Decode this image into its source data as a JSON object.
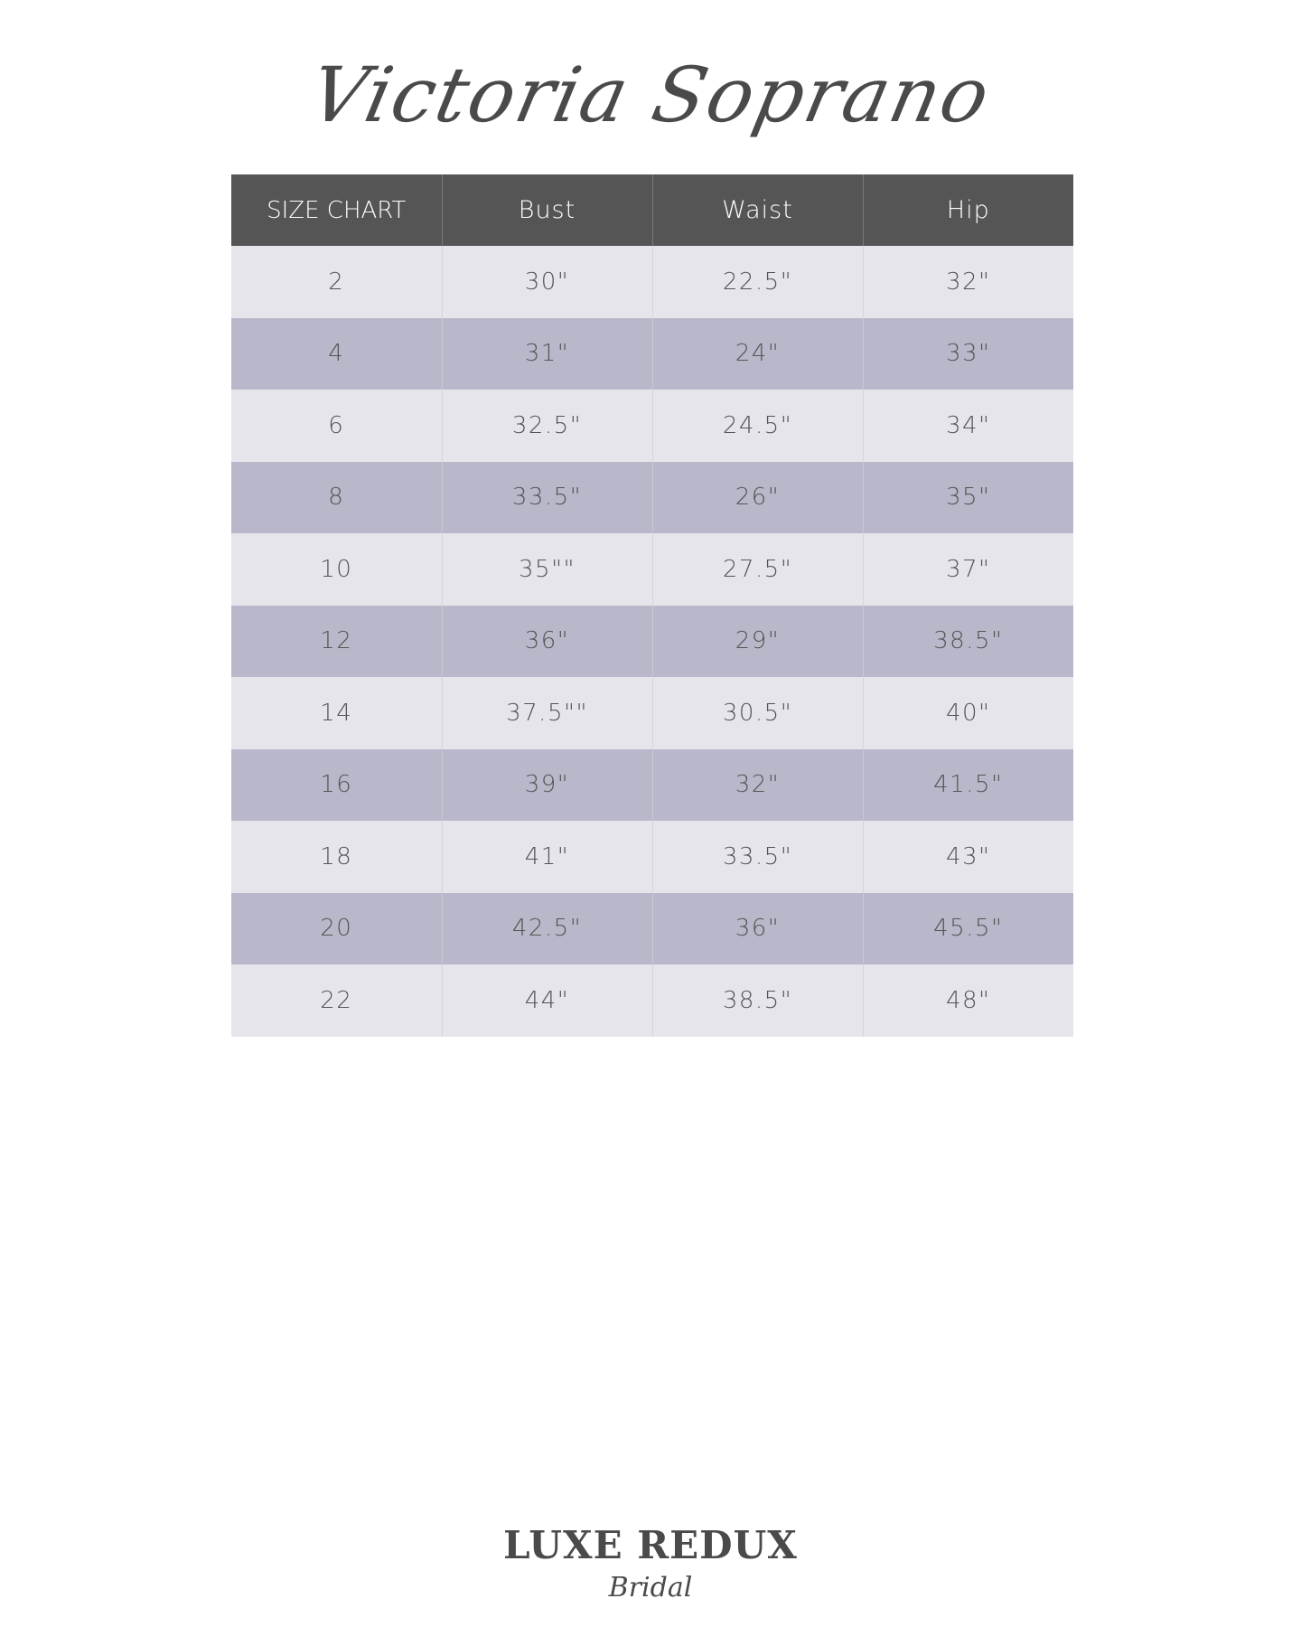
{
  "title": "Victoria Soprano",
  "table": {
    "headers": [
      "SIZE CHART",
      "Bust",
      "Waist",
      "Hip"
    ],
    "rows": [
      [
        "2",
        "30\"",
        "22.5\"",
        "32\""
      ],
      [
        "4",
        "31\"",
        "24\"",
        "33\""
      ],
      [
        "6",
        "32.5\"",
        "24.5\"",
        "34\""
      ],
      [
        "8",
        "33.5\"",
        "26\"",
        "35\""
      ],
      [
        "10",
        "35\"\"",
        "27.5\"",
        "37\""
      ],
      [
        "12",
        "36\"",
        "29\"",
        "38.5\""
      ],
      [
        "14",
        "37.5\"\"",
        "30.5\"",
        "40\""
      ],
      [
        "16",
        "39\"",
        "32\"",
        "41.5\""
      ],
      [
        "18",
        "41\"",
        "33.5\"",
        "43\""
      ],
      [
        "20",
        "42.5\"",
        "36\"",
        "45.5\""
      ],
      [
        "22",
        "44\"",
        "38.5\"",
        "48\""
      ]
    ]
  },
  "logo": {
    "main": "LUXE REDUX",
    "sub": "Bridal"
  },
  "colors": {
    "header": "#555555",
    "row_light": "#e6e5ec",
    "row_dark": "#b9b8ca"
  }
}
